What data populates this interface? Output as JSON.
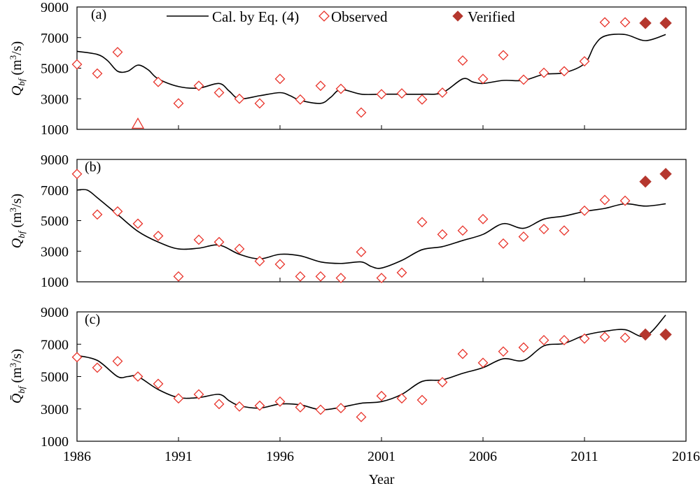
{
  "colors": {
    "marker": "#e8332a",
    "verified": "#b5372e",
    "line": "#000000"
  },
  "legend": {
    "calculated": "Cal. by Eq. (4)",
    "observed": "Observed",
    "verified": "Verified"
  },
  "xlabel": "Year",
  "chart_data": [
    {
      "type": "line",
      "panel_label": "(a)",
      "ylabel": "Q_bf (m^3/s)",
      "xlim": [
        1986,
        2016
      ],
      "ylim": [
        1000,
        9000
      ],
      "xticks": [
        "1986",
        "1991",
        "1996",
        "2001",
        "2006",
        "2011",
        "2016"
      ],
      "yticks": [
        "1000",
        "3000",
        "5000",
        "7000",
        "9000"
      ],
      "legend_position": "top",
      "series": [
        {
          "name": "Cal. by Eq. (4)",
          "kind": "line",
          "x": [
            1986,
            1987,
            1987.5,
            1988,
            1988.5,
            1989,
            1989.5,
            1990,
            1991,
            1992,
            1993,
            1993.5,
            1994,
            1995,
            1996,
            1996.5,
            1997,
            1998,
            1998.5,
            1999,
            2000,
            2001,
            2002,
            2003,
            2004,
            2005,
            2005.5,
            2006,
            2007,
            2008,
            2009,
            2010,
            2011,
            2011.5,
            2012,
            2013,
            2014,
            2015
          ],
          "y": [
            6100,
            5900,
            5500,
            4800,
            4800,
            5200,
            4900,
            4300,
            3800,
            3700,
            4000,
            3500,
            3000,
            3200,
            3400,
            3200,
            2900,
            2700,
            3100,
            3600,
            3300,
            3300,
            3300,
            3300,
            3400,
            4300,
            4100,
            4000,
            4200,
            4200,
            4600,
            4700,
            5300,
            6500,
            7100,
            7200,
            6800,
            7200
          ]
        },
        {
          "name": "Observed",
          "kind": "diamond",
          "x": [
            1986,
            1987,
            1988,
            1990,
            1991,
            1992,
            1993,
            1994,
            1995,
            1996,
            1997,
            1998,
            1999,
            2000,
            2001,
            2002,
            2003,
            2004,
            2005,
            2006,
            2007,
            2008,
            2009,
            2010,
            2011,
            2012,
            2013
          ],
          "y": [
            5250,
            4650,
            6050,
            4100,
            2700,
            3850,
            3400,
            3000,
            2700,
            4300,
            2950,
            3850,
            3650,
            2100,
            3300,
            3350,
            2950,
            3400,
            5500,
            4300,
            5850,
            4250,
            4700,
            4800,
            5450,
            8000,
            8000
          ]
        },
        {
          "name": "Verified",
          "kind": "filled-diamond",
          "x": [
            2014,
            2015
          ],
          "y": [
            7950,
            7950
          ]
        },
        {
          "name": "",
          "kind": "triangle",
          "x": [
            1989
          ],
          "y": [
            1350
          ]
        }
      ]
    },
    {
      "type": "line",
      "panel_label": "(b)",
      "ylabel": "Q_bf (m^3/s)",
      "xlim": [
        1986,
        2016
      ],
      "ylim": [
        1000,
        9000
      ],
      "xticks": [
        "1986",
        "1991",
        "1996",
        "2001",
        "2006",
        "2011",
        "2016"
      ],
      "yticks": [
        "1000",
        "3000",
        "5000",
        "7000",
        "9000"
      ],
      "series": [
        {
          "name": "Cal. by Eq. (4)",
          "kind": "line",
          "x": [
            1986,
            1986.5,
            1987,
            1988,
            1989,
            1990,
            1991,
            1992,
            1993,
            1994,
            1995,
            1996,
            1997,
            1998,
            1999,
            2000,
            2000.5,
            2001,
            2002,
            2003,
            2004,
            2005,
            2006,
            2007,
            2008,
            2009,
            2010,
            2011,
            2012,
            2013,
            2014,
            2015
          ],
          "y": [
            7000,
            7000,
            6500,
            5400,
            4300,
            3600,
            3150,
            3200,
            3400,
            2800,
            2500,
            2800,
            2700,
            2300,
            2200,
            2300,
            2000,
            1900,
            2400,
            3100,
            3300,
            3700,
            4100,
            4800,
            4500,
            5100,
            5300,
            5600,
            5800,
            6100,
            5950,
            6100
          ]
        },
        {
          "name": "Observed",
          "kind": "diamond",
          "x": [
            1986,
            1987,
            1988,
            1989,
            1990,
            1991,
            1992,
            1993,
            1994,
            1995,
            1996,
            1997,
            1998,
            1999,
            2000,
            2001,
            2002,
            2003,
            2004,
            2005,
            2006,
            2007,
            2008,
            2009,
            2010,
            2011,
            2012,
            2013
          ],
          "y": [
            8050,
            5400,
            5600,
            4800,
            4000,
            1350,
            3750,
            3600,
            3150,
            2350,
            2150,
            1350,
            1350,
            1250,
            2950,
            1250,
            1600,
            4900,
            4100,
            4350,
            5100,
            3500,
            3950,
            4450,
            4350,
            5650,
            6350,
            6300
          ]
        },
        {
          "name": "Verified",
          "kind": "filled-diamond",
          "x": [
            2014,
            2015
          ],
          "y": [
            7550,
            8050
          ]
        }
      ]
    },
    {
      "type": "line",
      "panel_label": "(c)",
      "ylabel": "Q̄_bf (m^3/s)",
      "xlim": [
        1986,
        2016
      ],
      "ylim": [
        1000,
        9000
      ],
      "xticks": [
        "1986",
        "1991",
        "1996",
        "2001",
        "2006",
        "2011",
        "2016"
      ],
      "yticks": [
        "1000",
        "3000",
        "5000",
        "7000",
        "9000"
      ],
      "series": [
        {
          "name": "Cal. by Eq. (4)",
          "kind": "line",
          "x": [
            1986,
            1987,
            1988,
            1988.5,
            1989,
            1990,
            1991,
            1992,
            1993,
            1993.5,
            1994,
            1995,
            1996,
            1997,
            1998,
            1999,
            2000,
            2001,
            2002,
            2003,
            2004,
            2005,
            2006,
            2007,
            2008,
            2009,
            2010,
            2011,
            2012,
            2013,
            2014,
            2015
          ],
          "y": [
            6300,
            6000,
            5000,
            5000,
            5000,
            4200,
            3700,
            3700,
            3900,
            3500,
            3200,
            3050,
            3300,
            3250,
            2950,
            3100,
            3350,
            3450,
            3900,
            4700,
            4800,
            5200,
            5550,
            6100,
            6000,
            6900,
            7050,
            7550,
            7800,
            7900,
            7500,
            8800
          ]
        },
        {
          "name": "Observed",
          "kind": "diamond",
          "x": [
            1986,
            1987,
            1988,
            1989,
            1990,
            1991,
            1992,
            1993,
            1994,
            1995,
            1996,
            1997,
            1998,
            1999,
            2000,
            2001,
            2002,
            2003,
            2004,
            2005,
            2006,
            2007,
            2008,
            2009,
            2010,
            2011,
            2012,
            2013
          ],
          "y": [
            6200,
            5550,
            5950,
            5000,
            4550,
            3650,
            3900,
            3300,
            3150,
            3200,
            3450,
            3100,
            2950,
            3050,
            2500,
            3800,
            3650,
            3550,
            4650,
            6400,
            5850,
            6550,
            6800,
            7250,
            7250,
            7350,
            7450,
            7400
          ]
        },
        {
          "name": "Verified",
          "kind": "filled-diamond",
          "x": [
            2014,
            2015
          ],
          "y": [
            7600,
            7600
          ]
        }
      ]
    }
  ]
}
